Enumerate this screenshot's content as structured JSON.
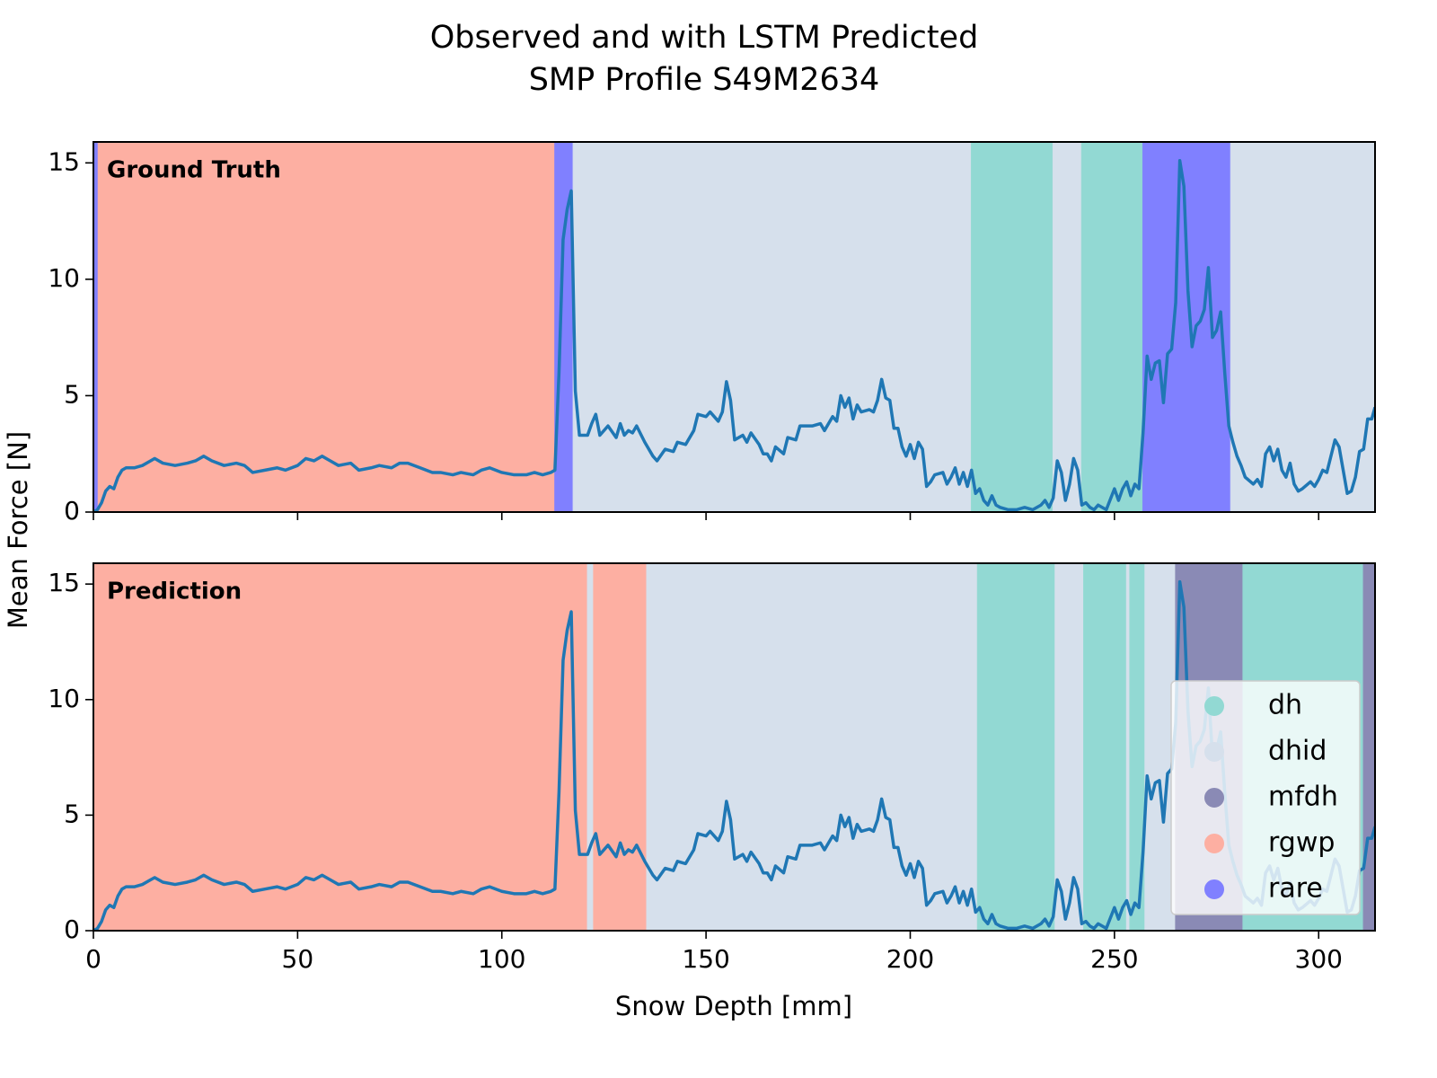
{
  "chart_data": {
    "type": "line",
    "title": "Observed and with LSTM Predicted",
    "subtitle": "SMP Profile S49M2634",
    "xlabel": "Snow Depth [mm]",
    "ylabel": "Mean Force [N]",
    "xlim": [
      0,
      313.8
    ],
    "xticks": [
      0,
      50,
      100,
      150,
      200,
      250,
      300
    ],
    "ylim": [
      0,
      15.9
    ],
    "yticks": [
      0,
      5,
      10,
      15
    ],
    "color": "#1f77b4",
    "x": [
      0,
      1,
      2,
      3,
      4,
      5,
      6,
      7,
      8,
      10,
      12,
      14,
      15,
      17,
      20,
      23,
      25,
      27,
      29,
      32,
      35,
      37,
      39,
      42,
      45,
      47,
      50,
      52,
      54,
      56,
      58,
      60,
      63,
      65,
      68,
      70,
      73,
      75,
      77,
      80,
      83,
      85,
      88,
      90,
      93,
      95,
      97,
      100,
      103,
      106,
      108,
      110,
      112,
      113,
      114,
      115,
      116,
      117,
      118,
      119,
      121,
      122,
      123,
      124,
      126,
      128,
      129,
      130,
      131,
      132,
      133,
      135,
      137,
      138,
      140,
      142,
      143,
      145,
      147,
      148,
      150,
      151,
      153,
      154,
      155,
      156,
      157,
      159,
      160,
      161,
      163,
      164,
      165,
      166,
      167,
      169,
      170,
      172,
      173,
      175,
      176,
      178,
      179,
      180,
      181,
      182,
      183,
      184,
      185,
      186,
      187,
      188,
      190,
      191,
      192,
      193,
      194,
      195,
      196,
      197,
      198,
      199,
      200,
      201,
      202,
      203,
      204,
      205,
      206,
      208,
      209,
      210,
      211,
      212,
      213,
      214,
      215,
      216,
      217,
      218,
      219,
      220,
      221,
      222,
      224,
      226,
      228,
      230,
      232,
      233,
      234,
      235,
      236,
      237,
      238,
      239,
      240,
      241,
      242,
      243,
      244,
      245,
      246,
      248,
      250,
      251,
      252,
      253,
      254,
      255,
      256,
      257,
      258,
      259,
      260,
      261,
      262,
      263,
      264,
      265,
      266,
      267,
      268,
      269,
      270,
      271,
      272,
      273,
      274,
      275,
      276,
      277,
      278,
      279,
      280,
      281,
      282,
      284,
      285,
      286,
      287,
      288,
      289,
      290,
      291,
      292,
      293,
      294,
      295,
      296,
      298,
      299,
      300,
      301,
      302,
      304,
      305,
      306,
      307,
      308,
      309,
      310,
      311,
      312,
      313,
      313.8
    ],
    "values": [
      0,
      0.1,
      0.4,
      0.9,
      1.1,
      1.0,
      1.5,
      1.8,
      1.9,
      1.9,
      2.0,
      2.2,
      2.3,
      2.1,
      2.0,
      2.1,
      2.2,
      2.4,
      2.2,
      2.0,
      2.1,
      2.0,
      1.7,
      1.8,
      1.9,
      1.8,
      2.0,
      2.3,
      2.2,
      2.4,
      2.2,
      2.0,
      2.1,
      1.8,
      1.9,
      2.0,
      1.9,
      2.1,
      2.1,
      1.9,
      1.7,
      1.7,
      1.6,
      1.7,
      1.6,
      1.8,
      1.9,
      1.7,
      1.6,
      1.6,
      1.7,
      1.6,
      1.7,
      1.8,
      6.0,
      11.7,
      13.0,
      13.8,
      5.2,
      3.3,
      3.3,
      3.8,
      4.2,
      3.3,
      3.7,
      3.2,
      3.8,
      3.3,
      3.5,
      3.4,
      3.7,
      3.0,
      2.4,
      2.2,
      2.7,
      2.6,
      3.0,
      2.9,
      3.5,
      4.2,
      4.1,
      4.3,
      3.9,
      4.3,
      5.6,
      4.8,
      3.1,
      3.3,
      3.0,
      3.4,
      2.9,
      2.5,
      2.5,
      2.2,
      2.8,
      2.5,
      3.2,
      3.1,
      3.7,
      3.7,
      3.7,
      3.8,
      3.5,
      3.8,
      4.1,
      3.9,
      5.0,
      4.5,
      4.9,
      4.0,
      4.6,
      4.3,
      4.4,
      4.3,
      4.8,
      5.7,
      4.9,
      4.8,
      3.6,
      3.6,
      2.8,
      2.4,
      2.9,
      2.3,
      3.0,
      2.7,
      1.1,
      1.3,
      1.6,
      1.7,
      1.2,
      1.5,
      1.9,
      1.2,
      1.7,
      1.1,
      1.8,
      0.8,
      1.0,
      0.5,
      0.3,
      0.7,
      0.3,
      0.2,
      0.1,
      0.1,
      0.2,
      0.1,
      0.3,
      0.5,
      0.2,
      0.6,
      2.2,
      1.7,
      0.5,
      1.2,
      2.3,
      1.8,
      0.3,
      0.4,
      0.2,
      0.1,
      0.3,
      0.1,
      1.0,
      0.5,
      1.0,
      1.3,
      0.7,
      1.2,
      1.0,
      3.4,
      6.7,
      5.7,
      6.4,
      6.5,
      4.7,
      6.8,
      7.0,
      9.0,
      15.1,
      14.0,
      9.5,
      7.1,
      8.0,
      8.2,
      8.7,
      10.5,
      7.5,
      7.8,
      8.6,
      6.0,
      3.7,
      3.0,
      2.4,
      2.0,
      1.5,
      1.2,
      1.4,
      1.1,
      2.5,
      2.8,
      2.2,
      2.7,
      1.8,
      1.5,
      2.1,
      1.2,
      0.9,
      1.0,
      1.3,
      1.1,
      1.4,
      1.8,
      1.7,
      3.1,
      2.8,
      1.8,
      0.8,
      0.9,
      1.5,
      2.6,
      2.7,
      4.0,
      4.0,
      4.5
    ],
    "classes": [
      {
        "name": "dh",
        "color": "#92d9d3"
      },
      {
        "name": "dhid",
        "color": "#d6e0ec"
      },
      {
        "name": "mfdh",
        "color": "#8a8ab5"
      },
      {
        "name": "rgwp",
        "color": "#fdafa2"
      },
      {
        "name": "rare",
        "color": "#8080ff"
      }
    ],
    "panels": [
      {
        "label": "Ground Truth",
        "legend": false,
        "segments": [
          {
            "class": "rare",
            "start": 0,
            "end": 1.2
          },
          {
            "class": "rgwp",
            "start": 1.2,
            "end": 113
          },
          {
            "class": "rare",
            "start": 113,
            "end": 117.5
          },
          {
            "class": "dhid",
            "start": 117.5,
            "end": 215
          },
          {
            "class": "dh",
            "start": 215,
            "end": 235
          },
          {
            "class": "dhid",
            "start": 235,
            "end": 242
          },
          {
            "class": "dh",
            "start": 242,
            "end": 257
          },
          {
            "class": "rare",
            "start": 257,
            "end": 278.5
          },
          {
            "class": "dhid",
            "start": 278.5,
            "end": 313.8
          }
        ]
      },
      {
        "label": "Prediction",
        "legend": true,
        "segments": [
          {
            "class": "rgwp",
            "start": 0,
            "end": 121
          },
          {
            "class": "dhid",
            "start": 121,
            "end": 122.5
          },
          {
            "class": "rgwp",
            "start": 122.5,
            "end": 135.5
          },
          {
            "class": "dhid",
            "start": 135.5,
            "end": 216.5
          },
          {
            "class": "dh",
            "start": 216.5,
            "end": 235.5
          },
          {
            "class": "dhid",
            "start": 235.5,
            "end": 242.5
          },
          {
            "class": "dh",
            "start": 242.5,
            "end": 253
          },
          {
            "class": "dhid",
            "start": 253,
            "end": 253.8
          },
          {
            "class": "dh",
            "start": 253.8,
            "end": 257.5
          },
          {
            "class": "dhid",
            "start": 257.5,
            "end": 265
          },
          {
            "class": "mfdh",
            "start": 265,
            "end": 281.5
          },
          {
            "class": "dh",
            "start": 281.5,
            "end": 311
          },
          {
            "class": "mfdh",
            "start": 311,
            "end": 313.8
          }
        ]
      }
    ]
  }
}
